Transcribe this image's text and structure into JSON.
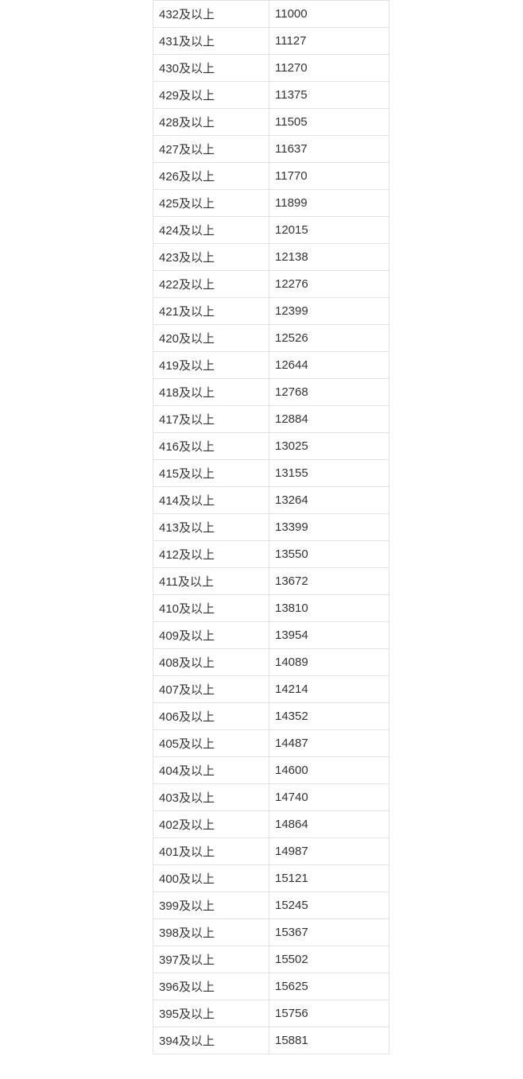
{
  "colors": {
    "background": "#ffffff",
    "border": "#e1e1e1",
    "text": "#333333"
  },
  "table": {
    "description": "score segment cumulative count table",
    "columns": [
      "score_range",
      "cumulative_count"
    ],
    "rows": [
      {
        "score": "432及以上",
        "count": "11000"
      },
      {
        "score": "431及以上",
        "count": "11127"
      },
      {
        "score": "430及以上",
        "count": "11270"
      },
      {
        "score": "429及以上",
        "count": "11375"
      },
      {
        "score": "428及以上",
        "count": "11505"
      },
      {
        "score": "427及以上",
        "count": "11637"
      },
      {
        "score": "426及以上",
        "count": "11770"
      },
      {
        "score": "425及以上",
        "count": "11899"
      },
      {
        "score": "424及以上",
        "count": "12015"
      },
      {
        "score": "423及以上",
        "count": "12138"
      },
      {
        "score": "422及以上",
        "count": "12276"
      },
      {
        "score": "421及以上",
        "count": "12399"
      },
      {
        "score": "420及以上",
        "count": "12526"
      },
      {
        "score": "419及以上",
        "count": "12644"
      },
      {
        "score": "418及以上",
        "count": "12768"
      },
      {
        "score": "417及以上",
        "count": "12884"
      },
      {
        "score": "416及以上",
        "count": "13025"
      },
      {
        "score": "415及以上",
        "count": "13155"
      },
      {
        "score": "414及以上",
        "count": "13264"
      },
      {
        "score": "413及以上",
        "count": "13399"
      },
      {
        "score": "412及以上",
        "count": "13550"
      },
      {
        "score": "411及以上",
        "count": "13672"
      },
      {
        "score": "410及以上",
        "count": "13810"
      },
      {
        "score": "409及以上",
        "count": "13954"
      },
      {
        "score": "408及以上",
        "count": "14089"
      },
      {
        "score": "407及以上",
        "count": "14214"
      },
      {
        "score": "406及以上",
        "count": "14352"
      },
      {
        "score": "405及以上",
        "count": "14487"
      },
      {
        "score": "404及以上",
        "count": "14600"
      },
      {
        "score": "403及以上",
        "count": "14740"
      },
      {
        "score": "402及以上",
        "count": "14864"
      },
      {
        "score": "401及以上",
        "count": "14987"
      },
      {
        "score": "400及以上",
        "count": "15121"
      },
      {
        "score": "399及以上",
        "count": "15245"
      },
      {
        "score": "398及以上",
        "count": "15367"
      },
      {
        "score": "397及以上",
        "count": "15502"
      },
      {
        "score": "396及以上",
        "count": "15625"
      },
      {
        "score": "395及以上",
        "count": "15756"
      },
      {
        "score": "394及以上",
        "count": "15881"
      }
    ]
  }
}
